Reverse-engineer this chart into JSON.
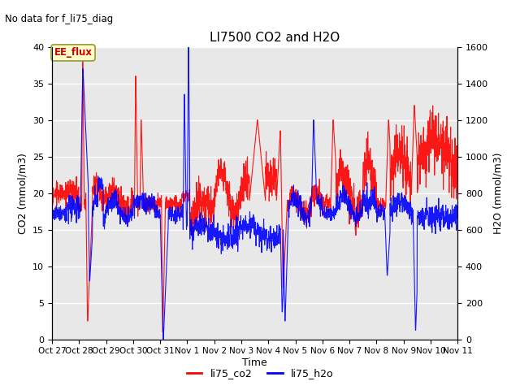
{
  "title": "LI7500 CO2 and H2O",
  "top_left_text": "No data for f_li75_diag",
  "box_label": "EE_flux",
  "xlabel": "Time",
  "ylabel_left": "CO2 (mmol/m3)",
  "ylabel_right": "H2O (mmol/m3)",
  "ylim_left": [
    0,
    40
  ],
  "ylim_right": [
    0,
    1600
  ],
  "yticks_left": [
    0,
    5,
    10,
    15,
    20,
    25,
    30,
    35,
    40
  ],
  "yticks_right": [
    0,
    200,
    400,
    600,
    800,
    1000,
    1200,
    1400,
    1600
  ],
  "xtick_labels": [
    "Oct 27",
    "Oct 28",
    "Oct 29",
    "Oct 30",
    "Oct 31",
    "Nov 1",
    "Nov 2",
    "Nov 3",
    "Nov 4",
    "Nov 5",
    "Nov 6",
    "Nov 7",
    "Nov 8",
    "Nov 9",
    "Nov 10",
    "Nov 11"
  ],
  "legend_entries": [
    "li75_co2",
    "li75_h2o"
  ],
  "co2_color": "red",
  "h2o_color": "blue",
  "plot_bg_color": "#e8e8e8",
  "grid_color": "white",
  "box_facecolor": "#ffffcc",
  "box_edgecolor": "#999933",
  "box_textcolor": "#cc0000",
  "figsize": [
    6.4,
    4.8
  ],
  "dpi": 100
}
